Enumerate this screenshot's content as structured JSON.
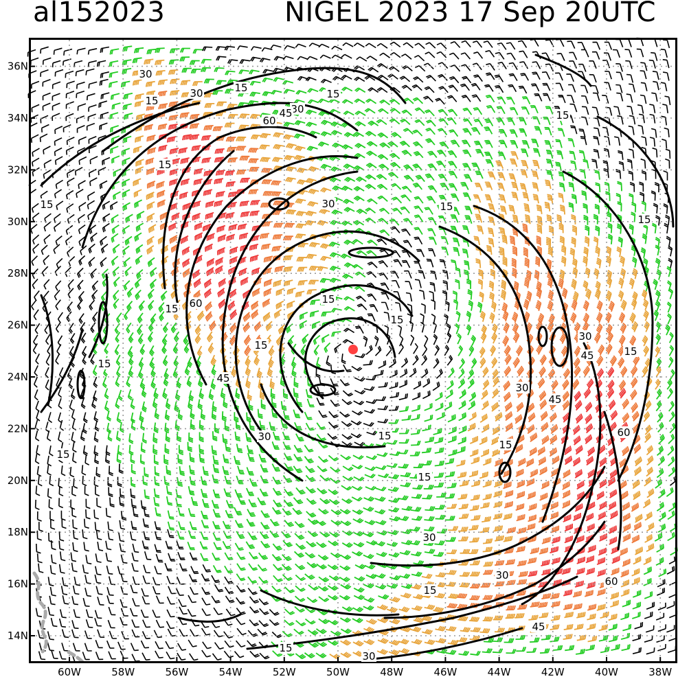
{
  "header": {
    "storm_id": "al152023",
    "title": "NIGEL 2023 17 Sep 20UTC"
  },
  "axes": {
    "lat_labels": [
      "14N",
      "16N",
      "18N",
      "20N",
      "22N",
      "24N",
      "26N",
      "28N",
      "30N",
      "32N",
      "34N",
      "36N"
    ],
    "lon_labels": [
      "60W",
      "58W",
      "56W",
      "54W",
      "52W",
      "50W",
      "48W",
      "46W",
      "44W",
      "42W",
      "40W",
      "38W"
    ]
  },
  "contour_labels": [
    "15",
    "30",
    "45",
    "60"
  ],
  "colors": {
    "calm": "#000000",
    "ts_force": "#22cc22",
    "strong": "#e8a43a",
    "gale": "#ee7a3a",
    "storm": "#ee3b3b",
    "center": "#ff4040",
    "grid": "#999999",
    "coast": "#aaaaaa"
  }
}
